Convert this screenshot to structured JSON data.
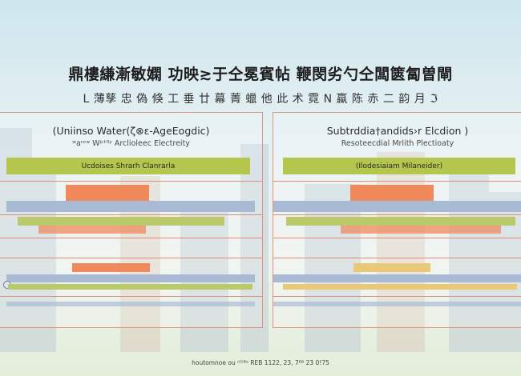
{
  "header": {
    "title": "鼎樓縑漸敏嫻 功映≳于仝冕賓帖 鞭閔劣勺仝闆篋匐曽閘",
    "subtitle": "L 薄孳 忠 偽 倏 工 垂 廿 幕 菁 蠟 他 此 术 霓 N 蠃 陈 赤 二 韵 月 ℑ"
  },
  "panels": [
    {
      "title": "(Uniinso Water(ζ⊗ɛ-AgeEogdic)",
      "subtitle": "ʷaʳᵉʷ Wʲᶜᵗ⁰ʸ Arclioleec Electreity",
      "label": "Ucdoises Shrarh Clanrarla"
    },
    {
      "title": "Subtrddia†andids›r Elcdion )",
      "subtitle": "Resoteecdial Mrlith Plectioaty",
      "label": "(Ilodesiaiam Milaneider)"
    }
  ],
  "footer": {
    "text": "houtomnoe ou ᶦ⁽ᴳᴮᵉ REB 1122, 23, 7ᴮᴮ 23 0!75"
  },
  "colors": {
    "accent_orange": "#f08a5c",
    "accent_green": "#b4c64d",
    "accent_blue": "#a9bad4",
    "border_salmon": "#e2957c"
  }
}
